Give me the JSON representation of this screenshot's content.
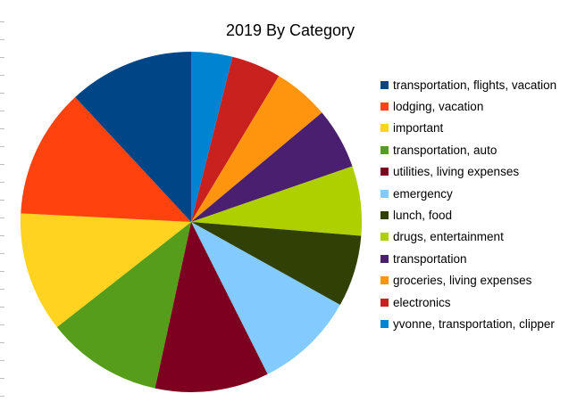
{
  "chart_data": {
    "type": "pie",
    "title": "2019 By Category",
    "legend_position": "right",
    "start_angle_deg": 0,
    "direction": "clockwise",
    "slices": [
      {
        "label": "yvonne, transportation, clipper",
        "value": 3.9,
        "color": "#0084d1"
      },
      {
        "label": "electronics",
        "value": 4.7,
        "color": "#c9211e"
      },
      {
        "label": "groceries, living expenses",
        "value": 5.3,
        "color": "#ff950e"
      },
      {
        "label": "transportation",
        "value": 5.8,
        "color": "#4b1f6f"
      },
      {
        "label": "drugs, entertainment",
        "value": 6.6,
        "color": "#aecf00"
      },
      {
        "label": "lunch, food",
        "value": 6.8,
        "color": "#314004"
      },
      {
        "label": "emergency",
        "value": 9.5,
        "color": "#83caff"
      },
      {
        "label": "utilities, living expenses",
        "value": 10.8,
        "color": "#7e0021"
      },
      {
        "label": "transportation, auto",
        "value": 11.0,
        "color": "#579d1c"
      },
      {
        "label": "important",
        "value": 11.4,
        "color": "#ffd320"
      },
      {
        "label": "lodging, vacation",
        "value": 12.3,
        "color": "#ff420e"
      },
      {
        "label": "transportation, flights, vacation",
        "value": 11.9,
        "color": "#004586"
      }
    ],
    "legend_order": [
      "transportation, flights, vacation",
      "lodging, vacation",
      "important",
      "transportation, auto",
      "utilities, living expenses",
      "emergency",
      "lunch, food",
      "drugs, entertainment",
      "transportation",
      "groceries, living expenses",
      "electronics",
      "yvonne, transportation, clipper"
    ]
  }
}
